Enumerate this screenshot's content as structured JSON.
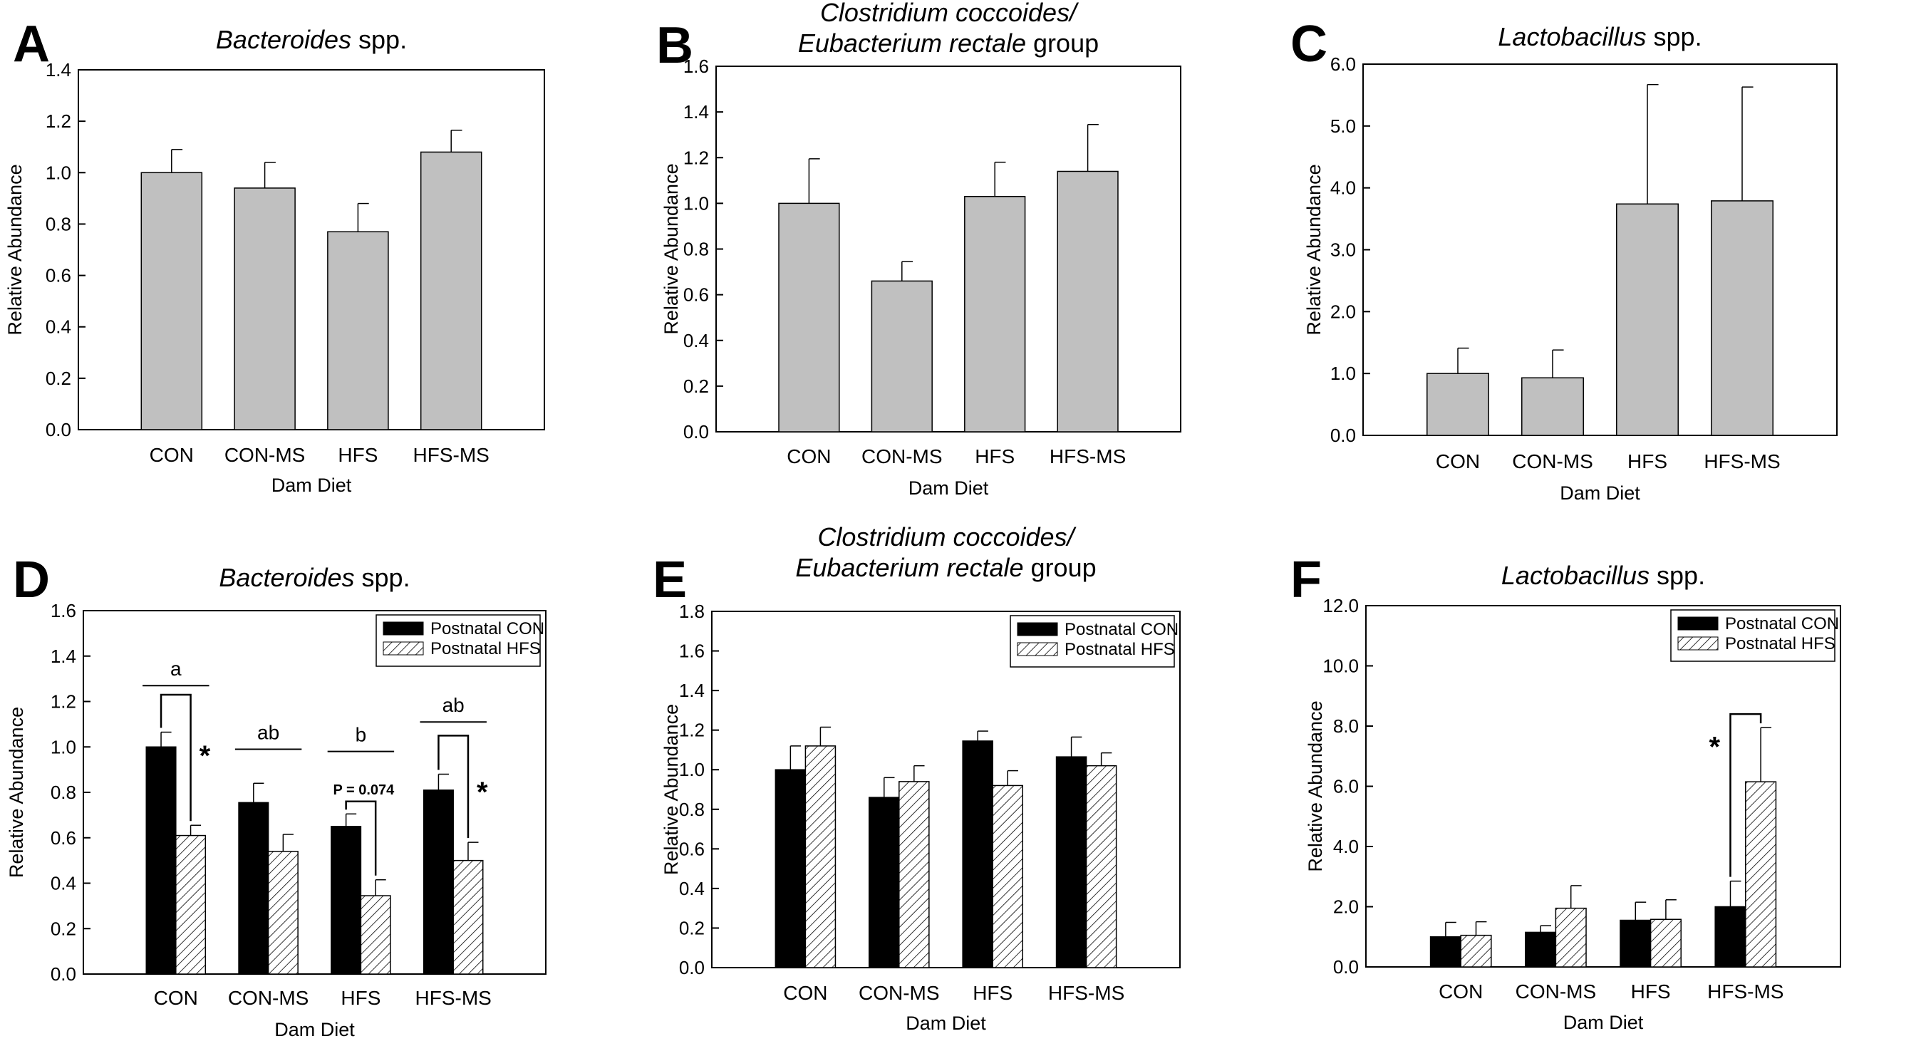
{
  "figure": {
    "note": "Bacterial group relative abundance by dam diet"
  },
  "colors": {
    "single": "#c0c0c0",
    "con": "#000000",
    "hfs": "#ffffff"
  },
  "chart_data": [
    {
      "panel": "A",
      "type": "bar",
      "title": "spp.",
      "title_italic": "Bacteroides",
      "categories": [
        "CON",
        "CON-MS",
        "HFS",
        "HFS-MS"
      ],
      "values": [
        1.0,
        0.94,
        0.77,
        1.08
      ],
      "errors": [
        0.09,
        0.1,
        0.11,
        0.085
      ],
      "ylim": [
        0,
        1.4
      ],
      "yticks": [
        "0.0",
        "0.2",
        "0.4",
        "0.6",
        "0.8",
        "1.0",
        "1.2",
        "1.4"
      ],
      "xlabel": "Dam Diet",
      "ylabel": "Relative Abundance"
    },
    {
      "panel": "B",
      "type": "bar",
      "title_italic_line1": "Clostridium coccoides/",
      "title_italic_line2": "Eubacterium rectale",
      "title_line2_suffix": " group",
      "categories": [
        "CON",
        "CON-MS",
        "HFS",
        "HFS-MS"
      ],
      "values": [
        1.0,
        0.66,
        1.03,
        1.14
      ],
      "errors": [
        0.195,
        0.085,
        0.15,
        0.205
      ],
      "ylim": [
        0,
        1.6
      ],
      "yticks": [
        "0.0",
        "0.2",
        "0.4",
        "0.6",
        "0.8",
        "1.0",
        "1.2",
        "1.4",
        "1.6"
      ],
      "xlabel": "Dam Diet",
      "ylabel": "Relative Abundance"
    },
    {
      "panel": "C",
      "type": "bar",
      "title_italic": "Lactobacillus",
      "title": " spp.",
      "categories": [
        "CON",
        "CON-MS",
        "HFS",
        "HFS-MS"
      ],
      "values": [
        1.0,
        0.93,
        3.74,
        3.79
      ],
      "errors": [
        0.41,
        0.45,
        1.93,
        1.84
      ],
      "ylim": [
        0,
        6.0
      ],
      "yticks": [
        "0.0",
        "1.0",
        "2.0",
        "3.0",
        "4.0",
        "5.0",
        "6.0"
      ],
      "xlabel": "Dam Diet",
      "ylabel": "Relative Abundance"
    },
    {
      "panel": "D",
      "type": "bar",
      "title_italic": "Bacteroides",
      "title": " spp.",
      "categories": [
        "CON",
        "CON-MS",
        "HFS",
        "HFS-MS"
      ],
      "series": [
        {
          "name": "Postnatal CON",
          "values": [
            1.0,
            0.755,
            0.65,
            0.81
          ],
          "errors": [
            0.065,
            0.085,
            0.055,
            0.07
          ]
        },
        {
          "name": "Postnatal HFS",
          "values": [
            0.61,
            0.54,
            0.345,
            0.5
          ],
          "errors": [
            0.045,
            0.075,
            0.07,
            0.08
          ]
        }
      ],
      "ylim": [
        0,
        1.6
      ],
      "yticks": [
        "0.0",
        "0.2",
        "0.4",
        "0.6",
        "0.8",
        "1.0",
        "1.2",
        "1.4",
        "1.6"
      ],
      "xlabel": "Dam Diet",
      "ylabel": "Relative Abundance",
      "group_letters": [
        "a",
        "ab",
        "b",
        "ab"
      ],
      "pvalue_label": "P = 0.074",
      "star": "*"
    },
    {
      "panel": "E",
      "type": "bar",
      "title_italic_line1": "Clostridium coccoides/",
      "title_italic_line2": "Eubacterium rectale",
      "title_line2_suffix": " group",
      "categories": [
        "CON",
        "CON-MS",
        "HFS",
        "HFS-MS"
      ],
      "series": [
        {
          "name": "Postnatal CON",
          "values": [
            1.0,
            0.86,
            1.145,
            1.065
          ],
          "errors": [
            0.12,
            0.1,
            0.05,
            0.1
          ]
        },
        {
          "name": "Postnatal HFS",
          "values": [
            1.12,
            0.94,
            0.92,
            1.02
          ],
          "errors": [
            0.095,
            0.08,
            0.075,
            0.065
          ]
        }
      ],
      "ylim": [
        0,
        1.8
      ],
      "yticks": [
        "0.0",
        "0.2",
        "0.4",
        "0.6",
        "0.8",
        "1.0",
        "1.2",
        "1.4",
        "1.6",
        "1.8"
      ],
      "xlabel": "Dam Diet",
      "ylabel": "Relative Abundance"
    },
    {
      "panel": "F",
      "type": "bar",
      "title_italic": "Lactobacillus",
      "title": " spp.",
      "categories": [
        "CON",
        "CON-MS",
        "HFS",
        "HFS-MS"
      ],
      "series": [
        {
          "name": "Postnatal CON",
          "values": [
            1.0,
            1.15,
            1.55,
            2.0
          ],
          "errors": [
            0.48,
            0.22,
            0.6,
            0.85
          ]
        },
        {
          "name": "Postnatal HFS",
          "values": [
            1.05,
            1.95,
            1.58,
            6.15
          ],
          "errors": [
            0.45,
            0.75,
            0.65,
            1.8
          ]
        }
      ],
      "ylim": [
        0,
        12.0
      ],
      "yticks": [
        "0.0",
        "2.0",
        "4.0",
        "6.0",
        "8.0",
        "10.0",
        "12.0"
      ],
      "xlabel": "Dam Diet",
      "ylabel": "Relative Abundance",
      "star": "*"
    }
  ]
}
